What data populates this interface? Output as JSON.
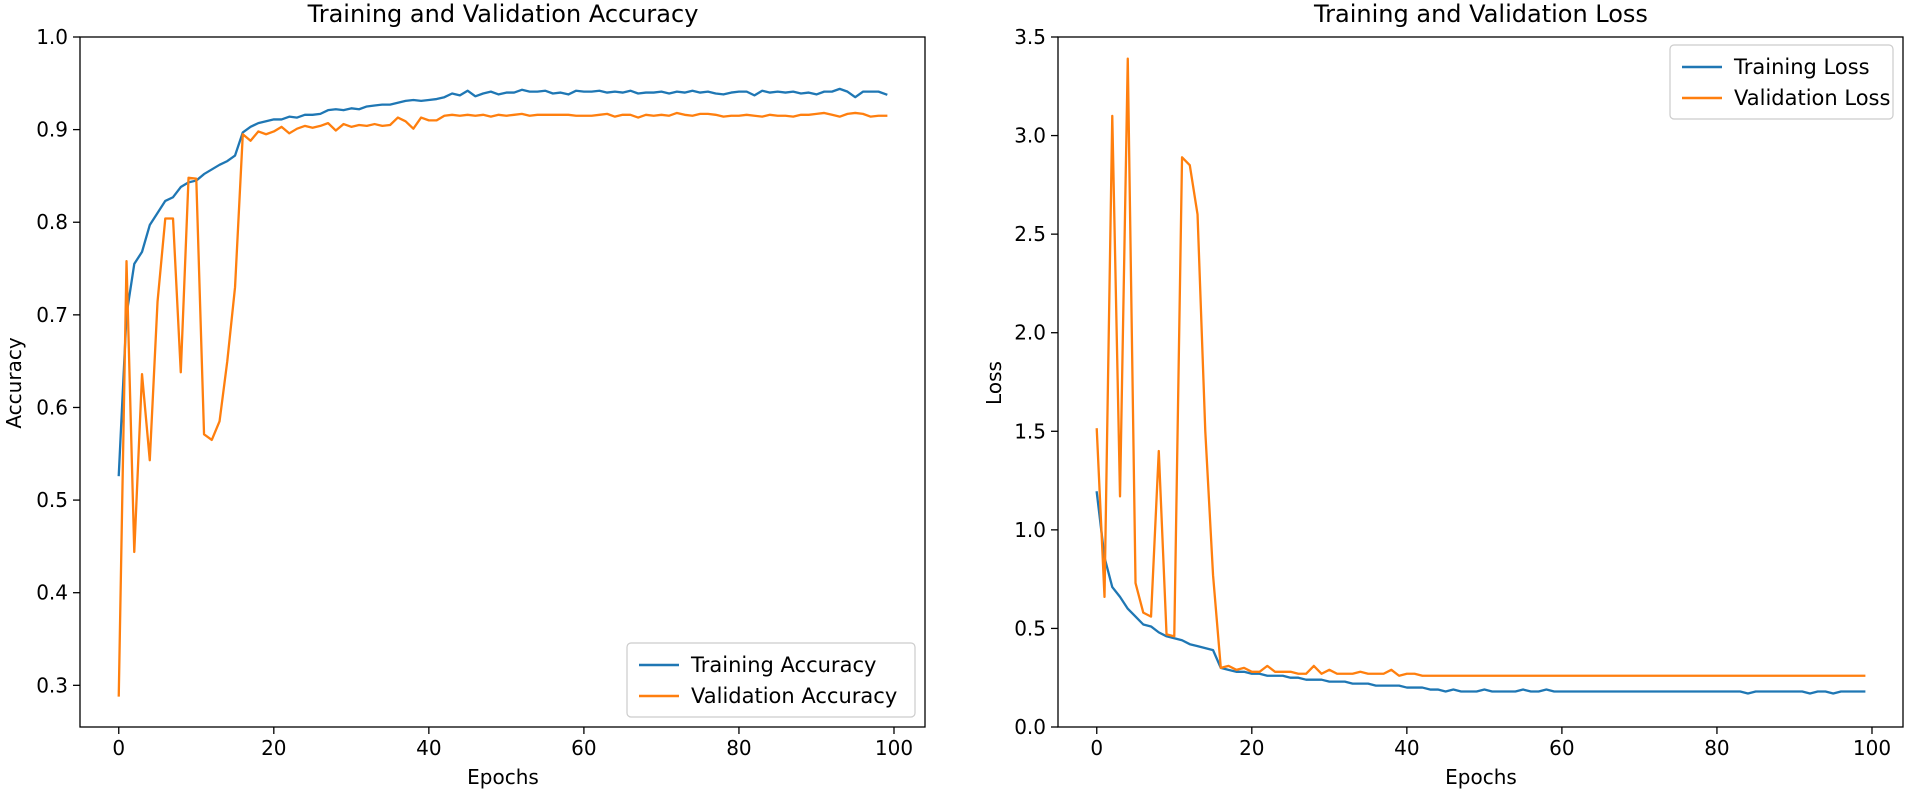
{
  "colors": {
    "training": "#1f77b4",
    "validation": "#ff7f0e"
  },
  "chart_data": [
    {
      "type": "line",
      "title": "Training and Validation Accuracy",
      "xlabel": "Epochs",
      "ylabel": "Accuracy",
      "xlim": [
        -5,
        104
      ],
      "ylim": [
        0.255,
        1.0
      ],
      "xticks": [
        0,
        20,
        40,
        60,
        80,
        100
      ],
      "xtick_labels": [
        "0",
        "20",
        "40",
        "60",
        "80",
        "100"
      ],
      "yticks": [
        0.3,
        0.4,
        0.5,
        0.6,
        0.7,
        0.8,
        0.9,
        1.0
      ],
      "ytick_labels": [
        "0.3",
        "0.4",
        "0.5",
        "0.6",
        "0.7",
        "0.8",
        "0.9",
        "1.0"
      ],
      "legend_position": "lower-right",
      "series": [
        {
          "name": "Training Accuracy",
          "color": "#1f77b4",
          "values": [
            0.527,
            0.7,
            0.755,
            0.768,
            0.797,
            0.81,
            0.823,
            0.827,
            0.838,
            0.843,
            0.845,
            0.852,
            0.857,
            0.862,
            0.866,
            0.872,
            0.897,
            0.903,
            0.907,
            0.909,
            0.911,
            0.911,
            0.914,
            0.913,
            0.916,
            0.916,
            0.917,
            0.921,
            0.922,
            0.921,
            0.923,
            0.922,
            0.925,
            0.926,
            0.927,
            0.927,
            0.929,
            0.931,
            0.932,
            0.931,
            0.932,
            0.933,
            0.935,
            0.939,
            0.937,
            0.942,
            0.936,
            0.939,
            0.941,
            0.938,
            0.94,
            0.94,
            0.943,
            0.941,
            0.941,
            0.942,
            0.939,
            0.94,
            0.938,
            0.942,
            0.941,
            0.941,
            0.942,
            0.94,
            0.941,
            0.94,
            0.942,
            0.939,
            0.94,
            0.94,
            0.941,
            0.939,
            0.941,
            0.94,
            0.942,
            0.94,
            0.941,
            0.939,
            0.938,
            0.94,
            0.941,
            0.941,
            0.937,
            0.942,
            0.94,
            0.941,
            0.94,
            0.941,
            0.939,
            0.94,
            0.938,
            0.941,
            0.941,
            0.944,
            0.941,
            0.935,
            0.941,
            0.941,
            0.941,
            0.938
          ]
        },
        {
          "name": "Validation Accuracy",
          "color": "#ff7f0e",
          "values": [
            0.289,
            0.758,
            0.444,
            0.636,
            0.543,
            0.714,
            0.804,
            0.804,
            0.638,
            0.848,
            0.847,
            0.571,
            0.565,
            0.585,
            0.65,
            0.73,
            0.895,
            0.888,
            0.898,
            0.895,
            0.898,
            0.903,
            0.896,
            0.901,
            0.904,
            0.902,
            0.904,
            0.907,
            0.899,
            0.906,
            0.903,
            0.905,
            0.904,
            0.906,
            0.904,
            0.905,
            0.913,
            0.909,
            0.901,
            0.913,
            0.91,
            0.91,
            0.915,
            0.916,
            0.915,
            0.916,
            0.915,
            0.916,
            0.914,
            0.916,
            0.915,
            0.916,
            0.917,
            0.915,
            0.916,
            0.916,
            0.916,
            0.916,
            0.916,
            0.915,
            0.915,
            0.915,
            0.916,
            0.917,
            0.914,
            0.916,
            0.916,
            0.913,
            0.916,
            0.915,
            0.916,
            0.915,
            0.918,
            0.916,
            0.915,
            0.917,
            0.917,
            0.916,
            0.914,
            0.915,
            0.915,
            0.916,
            0.915,
            0.914,
            0.916,
            0.915,
            0.915,
            0.914,
            0.916,
            0.916,
            0.917,
            0.918,
            0.916,
            0.914,
            0.917,
            0.918,
            0.917,
            0.914,
            0.915,
            0.915
          ]
        }
      ]
    },
    {
      "type": "line",
      "title": "Training and Validation Loss",
      "xlabel": "Epochs",
      "ylabel": "Loss",
      "xlim": [
        -5,
        104
      ],
      "ylim": [
        0.0,
        3.5
      ],
      "xticks": [
        0,
        20,
        40,
        60,
        80,
        100
      ],
      "xtick_labels": [
        "0",
        "20",
        "40",
        "60",
        "80",
        "100"
      ],
      "yticks": [
        0.0,
        0.5,
        1.0,
        1.5,
        2.0,
        2.5,
        3.0,
        3.5
      ],
      "ytick_labels": [
        "0.0",
        "0.5",
        "1.0",
        "1.5",
        "2.0",
        "2.5",
        "3.0",
        "3.5"
      ],
      "legend_position": "top-right",
      "series": [
        {
          "name": "Training Loss",
          "color": "#1f77b4",
          "values": [
            1.19,
            0.86,
            0.71,
            0.66,
            0.6,
            0.56,
            0.52,
            0.51,
            0.48,
            0.46,
            0.45,
            0.44,
            0.42,
            0.41,
            0.4,
            0.39,
            0.3,
            0.29,
            0.28,
            0.28,
            0.27,
            0.27,
            0.26,
            0.26,
            0.26,
            0.25,
            0.25,
            0.24,
            0.24,
            0.24,
            0.23,
            0.23,
            0.23,
            0.22,
            0.22,
            0.22,
            0.21,
            0.21,
            0.21,
            0.21,
            0.2,
            0.2,
            0.2,
            0.19,
            0.19,
            0.18,
            0.19,
            0.18,
            0.18,
            0.18,
            0.19,
            0.18,
            0.18,
            0.18,
            0.18,
            0.19,
            0.18,
            0.18,
            0.19,
            0.18,
            0.18,
            0.18,
            0.18,
            0.18,
            0.18,
            0.18,
            0.18,
            0.18,
            0.18,
            0.18,
            0.18,
            0.18,
            0.18,
            0.18,
            0.18,
            0.18,
            0.18,
            0.18,
            0.18,
            0.18,
            0.18,
            0.18,
            0.18,
            0.18,
            0.17,
            0.18,
            0.18,
            0.18,
            0.18,
            0.18,
            0.18,
            0.18,
            0.17,
            0.18,
            0.18,
            0.17,
            0.18,
            0.18,
            0.18,
            0.18
          ]
        },
        {
          "name": "Validation Loss",
          "color": "#ff7f0e",
          "values": [
            1.51,
            0.66,
            3.1,
            1.17,
            3.39,
            0.73,
            0.58,
            0.56,
            1.4,
            0.47,
            0.46,
            2.89,
            2.85,
            2.6,
            1.5,
            0.77,
            0.3,
            0.31,
            0.29,
            0.3,
            0.28,
            0.28,
            0.31,
            0.28,
            0.28,
            0.28,
            0.27,
            0.27,
            0.31,
            0.27,
            0.29,
            0.27,
            0.27,
            0.27,
            0.28,
            0.27,
            0.27,
            0.27,
            0.29,
            0.26,
            0.27,
            0.27,
            0.26,
            0.26,
            0.26,
            0.26,
            0.26,
            0.26,
            0.26,
            0.26,
            0.26,
            0.26,
            0.26,
            0.26,
            0.26,
            0.26,
            0.26,
            0.26,
            0.26,
            0.26,
            0.26,
            0.26,
            0.26,
            0.26,
            0.26,
            0.26,
            0.26,
            0.26,
            0.26,
            0.26,
            0.26,
            0.26,
            0.26,
            0.26,
            0.26,
            0.26,
            0.26,
            0.26,
            0.26,
            0.26,
            0.26,
            0.26,
            0.26,
            0.26,
            0.26,
            0.26,
            0.26,
            0.26,
            0.26,
            0.26,
            0.26,
            0.26,
            0.26,
            0.26,
            0.26,
            0.26,
            0.26,
            0.26,
            0.26,
            0.26
          ]
        }
      ]
    }
  ]
}
